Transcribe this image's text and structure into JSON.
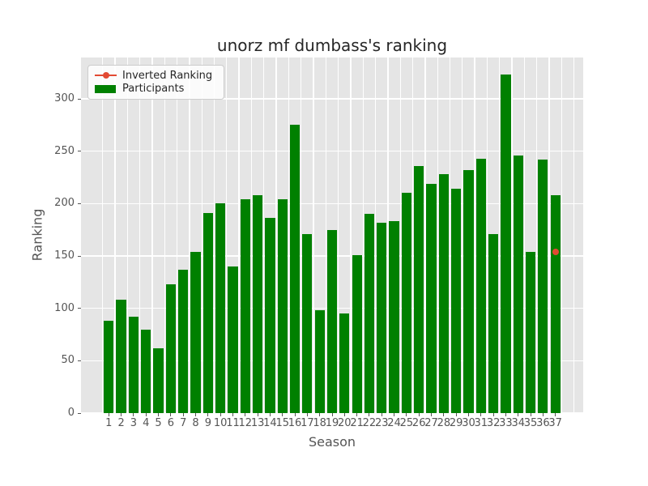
{
  "title": "unorz mf dumbass's ranking",
  "axes": {
    "x_label": "Season",
    "y_label": "Ranking"
  },
  "legend": {
    "position": "upper left",
    "items": [
      {
        "label": "Inverted Ranking",
        "type": "line-marker",
        "color": "#E24A33"
      },
      {
        "label": "Participants",
        "type": "patch",
        "color": "#008000"
      }
    ]
  },
  "colors": {
    "figure_bg": "#FFFFFF",
    "plot_bg": "#E5E5E5",
    "grid": "#FFFFFF",
    "bar": "#008000",
    "marker": "#E24A33",
    "tick_text": "#555555",
    "title_text": "#262626"
  },
  "chart_data": {
    "type": "bar",
    "title": "unorz mf dumbass's ranking",
    "xlabel": "Season",
    "ylabel": "Ranking",
    "categories": [
      1,
      2,
      3,
      4,
      5,
      6,
      7,
      8,
      9,
      10,
      11,
      12,
      13,
      14,
      15,
      16,
      17,
      18,
      19,
      20,
      21,
      22,
      23,
      24,
      25,
      26,
      27,
      28,
      29,
      30,
      31,
      32,
      33,
      34,
      35,
      36,
      37
    ],
    "series": [
      {
        "name": "Participants",
        "type": "bar",
        "color": "#008000",
        "values": [
          88,
          108,
          92,
          80,
          62,
          123,
          137,
          154,
          191,
          200,
          140,
          204,
          208,
          186,
          204,
          275,
          171,
          98,
          175,
          95,
          151,
          190,
          182,
          183,
          210,
          236,
          219,
          228,
          214,
          232,
          243,
          171,
          323,
          246,
          154,
          242,
          208
        ]
      },
      {
        "name": "Inverted Ranking",
        "type": "scatter",
        "color": "#E24A33",
        "points": [
          {
            "x": 37,
            "y": 154
          }
        ]
      }
    ],
    "yticks": [
      0,
      50,
      100,
      150,
      200,
      250,
      300
    ],
    "ylim": [
      0,
      339.5
    ],
    "xlim": [
      -1.24,
      39.24
    ],
    "grid": true,
    "legend_position": "upper left"
  }
}
